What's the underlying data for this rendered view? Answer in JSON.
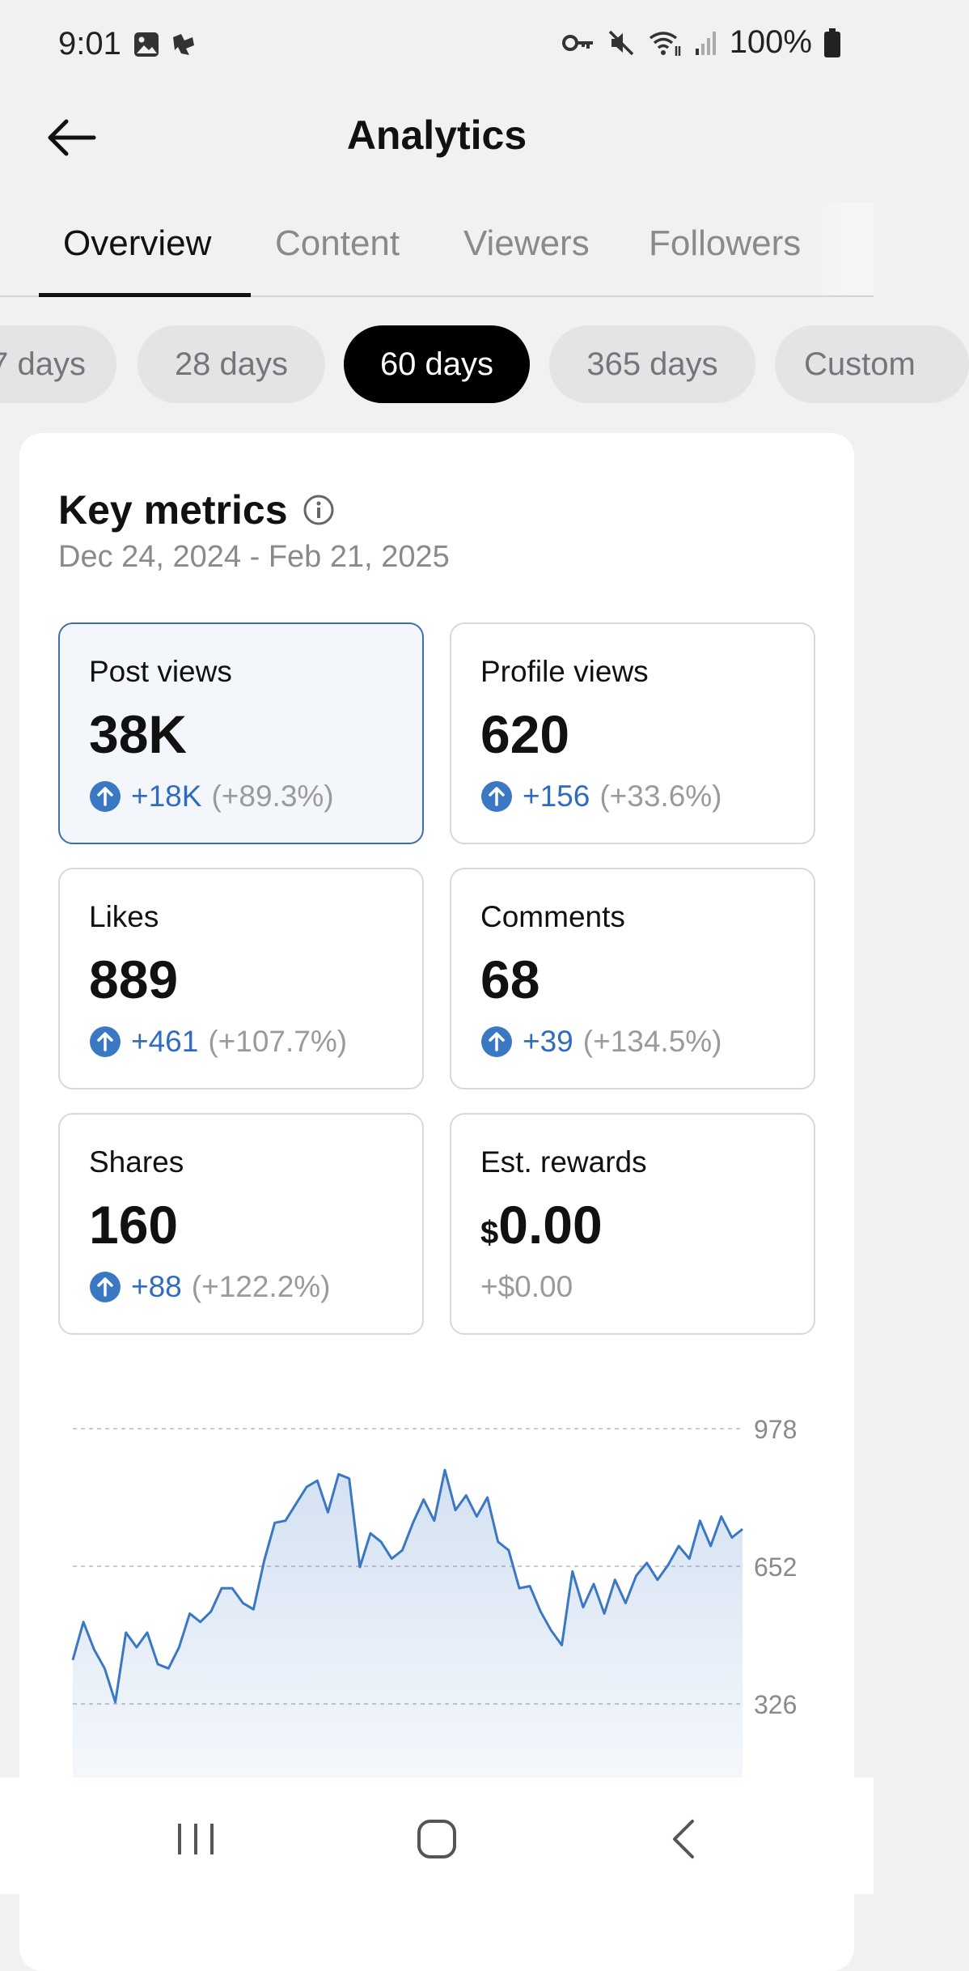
{
  "status_bar": {
    "time": "9:01",
    "battery": "100%",
    "icons": [
      "gallery-icon",
      "notification-icon",
      "vpn-key-icon",
      "mute-icon",
      "wifi-icon",
      "signal-icon",
      "battery-icon"
    ]
  },
  "header": {
    "title": "Analytics",
    "back_icon": "back-arrow-icon"
  },
  "tabs": [
    {
      "label": "Overview",
      "active": true
    },
    {
      "label": "Content",
      "active": false
    },
    {
      "label": "Viewers",
      "active": false
    },
    {
      "label": "Followers",
      "active": false
    }
  ],
  "date_chips": [
    {
      "label": "7 days",
      "active": false
    },
    {
      "label": "28 days",
      "active": false
    },
    {
      "label": "60 days",
      "active": true
    },
    {
      "label": "365 days",
      "active": false
    },
    {
      "label": "Custom",
      "active": false
    }
  ],
  "key_metrics": {
    "title": "Key metrics",
    "info_icon": "info-icon",
    "date_range": "Dec 24, 2024 - Feb 21, 2025",
    "items": [
      {
        "label": "Post views",
        "value": "38K",
        "delta": "+18K",
        "pct": "(+89.3%)",
        "selected": true
      },
      {
        "label": "Profile views",
        "value": "620",
        "delta": "+156",
        "pct": "(+33.6%)",
        "selected": false
      },
      {
        "label": "Likes",
        "value": "889",
        "delta": "+461",
        "pct": "(+107.7%)",
        "selected": false
      },
      {
        "label": "Comments",
        "value": "68",
        "delta": "+39",
        "pct": "(+134.5%)",
        "selected": false
      },
      {
        "label": "Shares",
        "value": "160",
        "delta": "+88",
        "pct": "(+122.2%)",
        "selected": false
      },
      {
        "label": "Est. rewards",
        "currency": "$",
        "value": "0.00",
        "change": "+$0.00",
        "selected": false
      }
    ]
  },
  "chart_data": {
    "type": "area",
    "series": [
      {
        "values": [
          430,
          520,
          455,
          410,
          330,
          495,
          460,
          495,
          420,
          410,
          460,
          540,
          520,
          545,
          600,
          600,
          565,
          550,
          665,
          755,
          760,
          800,
          840,
          855,
          780,
          870,
          860,
          650,
          730,
          710,
          670,
          690,
          755,
          810,
          760,
          880,
          785,
          820,
          770,
          815,
          710,
          690,
          600,
          605,
          545,
          500,
          465,
          640,
          555,
          610,
          540,
          620,
          565,
          630,
          660,
          620,
          655,
          700,
          670,
          760,
          700,
          770,
          720,
          740
        ]
      }
    ],
    "ylim": [
      0,
      978
    ],
    "y_ticks": [
      "978",
      "652",
      "326"
    ],
    "grid": true,
    "color": "#3b78c4"
  },
  "nav_bar": {
    "icons": [
      "recent-apps-icon",
      "home-icon",
      "back-icon"
    ]
  }
}
